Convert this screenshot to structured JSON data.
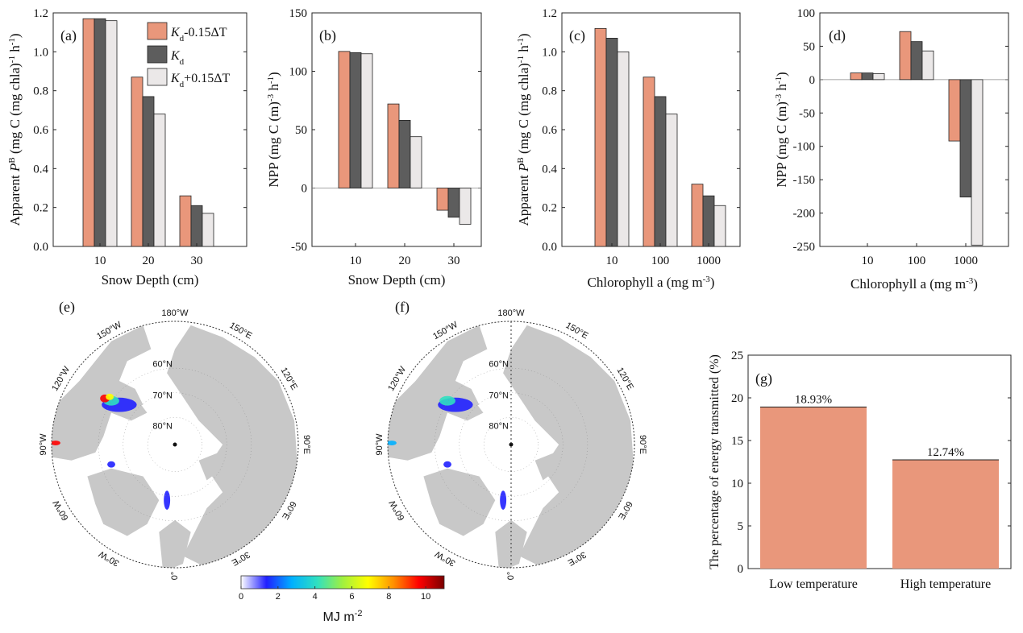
{
  "colors": {
    "salmon": "#e9977b",
    "dark_gray": "#5d5d5d",
    "light_gray": "#ebe8e8",
    "land": "#c8c8c8",
    "ocean": "#ffffff",
    "axis": "#262626"
  },
  "legend": {
    "entries": [
      {
        "base": "K",
        "sub": "d",
        "suffix": "-0.15ΔT"
      },
      {
        "base": "K",
        "sub": "d",
        "suffix": ""
      },
      {
        "base": "K",
        "sub": "d",
        "suffix": "+0.15ΔT"
      }
    ]
  },
  "chart_data": [
    {
      "panel": "(a)",
      "type": "bar",
      "categories": [
        "10",
        "20",
        "30"
      ],
      "series": [
        {
          "values": [
            1.17,
            0.87,
            0.26
          ]
        },
        {
          "values": [
            1.17,
            0.77,
            0.21
          ]
        },
        {
          "values": [
            1.16,
            0.68,
            0.17
          ]
        }
      ],
      "xlabel": "Snow Depth (cm)",
      "ylabel": "Apparent PB (mg C (mg chla)-1 h-1)",
      "ylim": [
        0,
        1.2
      ],
      "yticks": [
        "0.0",
        "0.2",
        "0.4",
        "0.6",
        "0.8",
        "1.0",
        "1.2"
      ],
      "legend": "top-right"
    },
    {
      "panel": "(b)",
      "type": "bar",
      "categories": [
        "10",
        "20",
        "30"
      ],
      "series": [
        {
          "values": [
            117,
            72,
            -19
          ]
        },
        {
          "values": [
            116,
            58,
            -25
          ]
        },
        {
          "values": [
            115,
            44,
            -31
          ]
        }
      ],
      "xlabel": "Snow Depth (cm)",
      "ylabel": "NPP (mg C (m)-3 h-1)",
      "ylim": [
        -50,
        150
      ],
      "yticks": [
        "-50",
        "0",
        "50",
        "100",
        "150"
      ]
    },
    {
      "panel": "(c)",
      "type": "bar",
      "categories": [
        "10",
        "100",
        "1000"
      ],
      "series": [
        {
          "values": [
            1.12,
            0.87,
            0.32
          ]
        },
        {
          "values": [
            1.07,
            0.77,
            0.26
          ]
        },
        {
          "values": [
            1.0,
            0.68,
            0.21
          ]
        }
      ],
      "xlabel": "Chlorophyll a (mg m-3)",
      "ylabel": "Apparent PB (mg C (mg chla)-1 h-1)",
      "ylim": [
        0,
        1.2
      ],
      "yticks": [
        "0.0",
        "0.2",
        "0.4",
        "0.6",
        "0.8",
        "1.0",
        "1.2"
      ]
    },
    {
      "panel": "(d)",
      "type": "bar",
      "categories": [
        "10",
        "100",
        "1000"
      ],
      "series": [
        {
          "values": [
            10,
            72,
            -92
          ]
        },
        {
          "values": [
            10,
            57,
            -176
          ]
        },
        {
          "values": [
            9,
            43,
            -248
          ]
        }
      ],
      "xlabel": "Chlorophyll a (mg m-3)",
      "ylabel": "NPP (mg C (m)-3 h-1)",
      "ylim": [
        -250,
        100
      ],
      "yticks": [
        "-250",
        "-200",
        "-150",
        "-100",
        "-50",
        "0",
        "50",
        "100"
      ]
    },
    {
      "panel": "(g)",
      "type": "bar",
      "categories": [
        "Low temperature",
        "High temperature"
      ],
      "values": [
        18.93,
        12.74
      ],
      "data_labels": [
        "18.93%",
        "12.74%"
      ],
      "ylabel": "The percentage of energy transmitted (%)",
      "ylim": [
        0,
        25
      ],
      "yticks": [
        "0",
        "5",
        "10",
        "15",
        "20",
        "25"
      ]
    }
  ],
  "maps": [
    {
      "panel": "(e)",
      "lon_labels": [
        "180°W",
        "150°W",
        "150°E",
        "120°W",
        "120°E",
        "90°W",
        "90°E",
        "60°W",
        "60°E",
        "30°W",
        "30°E",
        "0°"
      ],
      "lat_labels": [
        "60°N",
        "70°N",
        "80°N"
      ],
      "meridian_line": false
    },
    {
      "panel": "(f)",
      "lon_labels": [
        "180°W",
        "150°W",
        "150°E",
        "120°W",
        "120°E",
        "90°W",
        "90°E",
        "60°W",
        "60°E",
        "30°W",
        "30°E",
        "0°"
      ],
      "lat_labels": [
        "60°N",
        "70°N",
        "80°N"
      ],
      "meridian_line": true
    }
  ],
  "colorbar": {
    "ticks": [
      "0",
      "2",
      "4",
      "6",
      "8",
      "10"
    ],
    "range": [
      0,
      11
    ],
    "label": "MJ m-2",
    "stops": [
      "#ffffff",
      "#2020ff",
      "#00b0ff",
      "#30e0c0",
      "#a0f040",
      "#ffff00",
      "#ff9000",
      "#ff0000",
      "#7a0000"
    ]
  }
}
